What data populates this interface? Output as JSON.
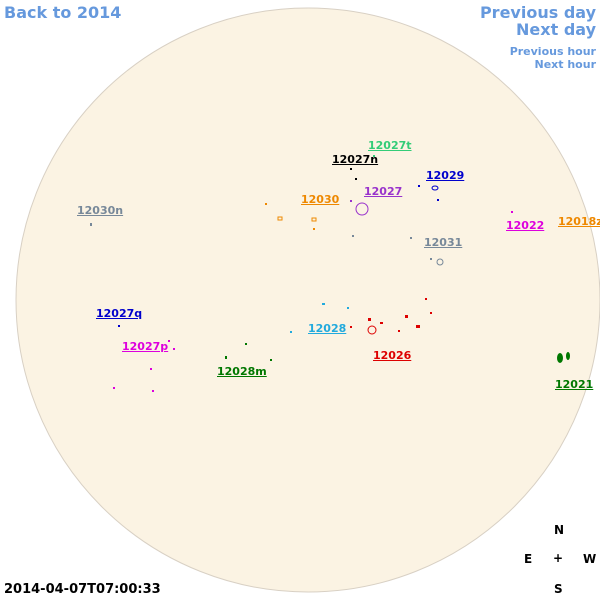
{
  "nav": {
    "back": "Back to 2014",
    "previous_day": "Previous day",
    "next_day": "Next day",
    "previous_hour": "Previous hour",
    "next_hour": "Next hour"
  },
  "timestamp": "2014-04-07T07:00:33",
  "compass": {
    "north": "N",
    "east": "E",
    "center": "+",
    "west": "W",
    "south": "S"
  },
  "regions": [
    {
      "label": "12027t",
      "color": "#33cc77"
    },
    {
      "label": "12027n",
      "color": "#000000"
    },
    {
      "label": "12029",
      "color": "#0000cc"
    },
    {
      "label": "12027",
      "color": "#9933cc"
    },
    {
      "label": "12030",
      "color": "#ee8800"
    },
    {
      "label": "12030n",
      "color": "#778899"
    },
    {
      "label": "12022",
      "color": "#dd00dd"
    },
    {
      "label": "12018z",
      "color": "#ee8800"
    },
    {
      "label": "12031",
      "color": "#778899"
    },
    {
      "label": "12027q",
      "color": "#0000cc"
    },
    {
      "label": "12028",
      "color": "#22aadd"
    },
    {
      "label": "12026",
      "color": "#dd0000"
    },
    {
      "label": "12027p",
      "color": "#dd00dd"
    },
    {
      "label": "12028m",
      "color": "#007700"
    },
    {
      "label": "12021",
      "color": "#007700"
    }
  ]
}
